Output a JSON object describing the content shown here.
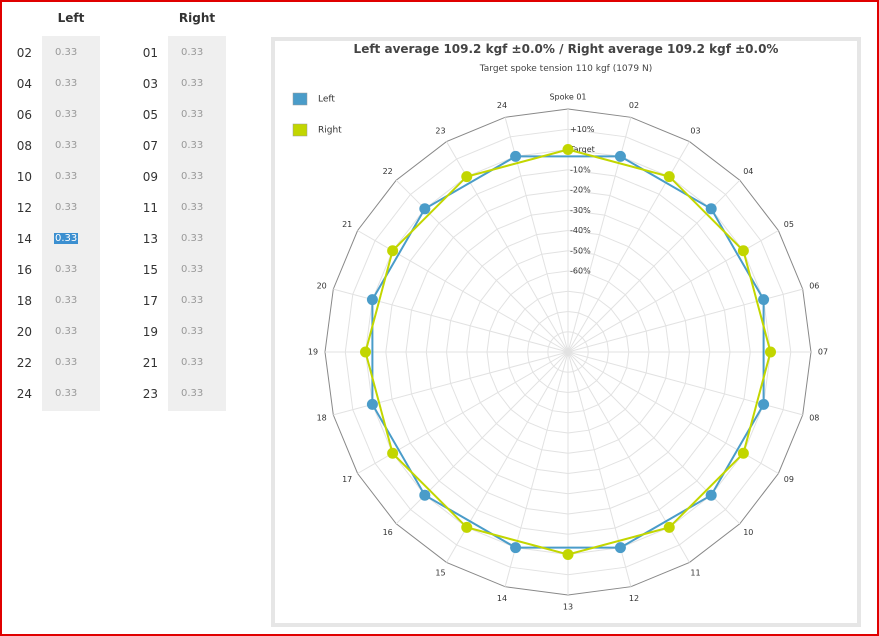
{
  "table": {
    "headers": [
      "Left",
      "Right"
    ],
    "rows": [
      [
        "02",
        "0.33",
        "01",
        "0.33"
      ],
      [
        "04",
        "0.33",
        "03",
        "0.33"
      ],
      [
        "06",
        "0.33",
        "05",
        "0.33"
      ],
      [
        "08",
        "0.33",
        "07",
        "0.33"
      ],
      [
        "10",
        "0.33",
        "09",
        "0.33"
      ],
      [
        "12",
        "0.33",
        "11",
        "0.33"
      ],
      [
        "14",
        "0.33",
        "13",
        "0.33"
      ],
      [
        "16",
        "0.33",
        "15",
        "0.33"
      ],
      [
        "18",
        "0.33",
        "17",
        "0.33"
      ],
      [
        "20",
        "0.33",
        "19",
        "0.33"
      ],
      [
        "22",
        "0.33",
        "21",
        "0.33"
      ],
      [
        "24",
        "0.33",
        "23",
        "0.33"
      ]
    ]
  },
  "chart_data": {
    "type": "radar",
    "title": "Left average 109.2 kgf ±0.0% / Right average 109.2 kgf ±0.0%",
    "subtitle": "Target spoke tension 110 kgf (1079 N)",
    "categories": [
      "Spoke 01",
      "02",
      "03",
      "04",
      "05",
      "06",
      "07",
      "08",
      "09",
      "10",
      "11",
      "12",
      "13",
      "14",
      "15",
      "16",
      "17",
      "18",
      "19",
      "20",
      "21",
      "22",
      "23",
      "24"
    ],
    "rlim": [
      -100,
      20
    ],
    "rticks": [
      {
        "value": 10,
        "label": "+10%"
      },
      {
        "value": 0,
        "label": "Target"
      },
      {
        "value": -10,
        "label": "-10%"
      },
      {
        "value": -20,
        "label": "-20%"
      },
      {
        "value": -30,
        "label": "-30%"
      },
      {
        "value": -40,
        "label": "-40%"
      },
      {
        "value": -50,
        "label": "-50%"
      },
      {
        "value": -60,
        "label": "-60%"
      }
    ],
    "legend": "top-left",
    "series": [
      {
        "name": "Left",
        "color": "#4a9cc9",
        "values": [
          null,
          0,
          null,
          0,
          null,
          0,
          null,
          0,
          null,
          0,
          null,
          0,
          null,
          0,
          null,
          0,
          null,
          0,
          null,
          0,
          null,
          0,
          null,
          0
        ]
      },
      {
        "name": "Right",
        "color": "#c2d600",
        "values": [
          0,
          null,
          0,
          null,
          0,
          null,
          0,
          null,
          0,
          null,
          0,
          null,
          0,
          null,
          0,
          null,
          0,
          null,
          0,
          null,
          0,
          null,
          0,
          null
        ]
      }
    ]
  }
}
